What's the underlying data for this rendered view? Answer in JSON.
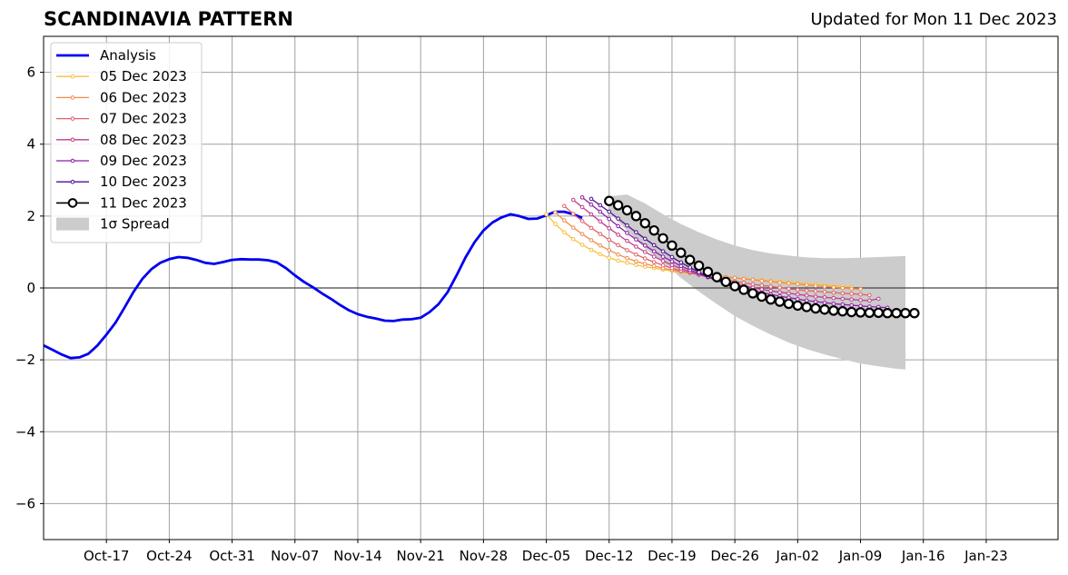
{
  "chart_data": {
    "type": "line",
    "title": "SCANDINAVIA PATTERN",
    "subtitle": "Updated for Mon 11 Dec 2023",
    "xlabel": "",
    "ylabel": "",
    "ylim": [
      -7,
      7
    ],
    "y_ticks": [
      -6,
      -4,
      -2,
      0,
      2,
      4,
      6
    ],
    "y_tick_labels": [
      "−6",
      "−4",
      "−2",
      "0",
      "2",
      "4",
      "6"
    ],
    "x_range": [
      "2023-10-10",
      "2024-01-31"
    ],
    "x_ticks": [
      {
        "date": "2023-10-17",
        "label": "Oct-17"
      },
      {
        "date": "2023-10-24",
        "label": "Oct-24"
      },
      {
        "date": "2023-10-31",
        "label": "Oct-31"
      },
      {
        "date": "2023-11-07",
        "label": "Nov-07"
      },
      {
        "date": "2023-11-14",
        "label": "Nov-14"
      },
      {
        "date": "2023-11-21",
        "label": "Nov-21"
      },
      {
        "date": "2023-11-28",
        "label": "Nov-28"
      },
      {
        "date": "2023-12-05",
        "label": "Dec-05"
      },
      {
        "date": "2023-12-12",
        "label": "Dec-12"
      },
      {
        "date": "2023-12-19",
        "label": "Dec-19"
      },
      {
        "date": "2023-12-26",
        "label": "Dec-26"
      },
      {
        "date": "2024-01-02",
        "label": "Jan-02"
      },
      {
        "date": "2024-01-09",
        "label": "Jan-09"
      },
      {
        "date": "2024-01-16",
        "label": "Jan-16"
      },
      {
        "date": "2024-01-23",
        "label": "Jan-23"
      }
    ],
    "grid": true,
    "legend_position": "top-left",
    "series": [
      {
        "name": "Analysis",
        "color": "#0000ee",
        "style": "analysis",
        "points": [
          [
            "2023-10-10",
            -1.6
          ],
          [
            "2023-10-11",
            -1.72
          ],
          [
            "2023-10-12",
            -1.85
          ],
          [
            "2023-10-13",
            -1.95
          ],
          [
            "2023-10-14",
            -1.93
          ],
          [
            "2023-10-15",
            -1.83
          ],
          [
            "2023-10-16",
            -1.6
          ],
          [
            "2023-10-17",
            -1.3
          ],
          [
            "2023-10-18",
            -0.97
          ],
          [
            "2023-10-19",
            -0.55
          ],
          [
            "2023-10-20",
            -0.12
          ],
          [
            "2023-10-21",
            0.25
          ],
          [
            "2023-10-22",
            0.52
          ],
          [
            "2023-10-23",
            0.7
          ],
          [
            "2023-10-24",
            0.8
          ],
          [
            "2023-10-25",
            0.86
          ],
          [
            "2023-10-26",
            0.84
          ],
          [
            "2023-10-27",
            0.78
          ],
          [
            "2023-10-28",
            0.7
          ],
          [
            "2023-10-29",
            0.67
          ],
          [
            "2023-10-30",
            0.72
          ],
          [
            "2023-10-31",
            0.78
          ],
          [
            "2023-11-01",
            0.8
          ],
          [
            "2023-11-02",
            0.79
          ],
          [
            "2023-11-03",
            0.79
          ],
          [
            "2023-11-04",
            0.77
          ],
          [
            "2023-11-05",
            0.71
          ],
          [
            "2023-11-06",
            0.55
          ],
          [
            "2023-11-07",
            0.35
          ],
          [
            "2023-11-08",
            0.17
          ],
          [
            "2023-11-09",
            0.02
          ],
          [
            "2023-11-10",
            -0.15
          ],
          [
            "2023-11-11",
            -0.3
          ],
          [
            "2023-11-12",
            -0.47
          ],
          [
            "2023-11-13",
            -0.62
          ],
          [
            "2023-11-14",
            -0.73
          ],
          [
            "2023-11-15",
            -0.8
          ],
          [
            "2023-11-16",
            -0.85
          ],
          [
            "2023-11-17",
            -0.91
          ],
          [
            "2023-11-18",
            -0.92
          ],
          [
            "2023-11-19",
            -0.88
          ],
          [
            "2023-11-20",
            -0.87
          ],
          [
            "2023-11-21",
            -0.83
          ],
          [
            "2023-11-22",
            -0.67
          ],
          [
            "2023-11-23",
            -0.45
          ],
          [
            "2023-11-24",
            -0.12
          ],
          [
            "2023-11-25",
            0.35
          ],
          [
            "2023-11-26",
            0.85
          ],
          [
            "2023-11-27",
            1.27
          ],
          [
            "2023-11-28",
            1.6
          ],
          [
            "2023-11-29",
            1.82
          ],
          [
            "2023-11-30",
            1.96
          ],
          [
            "2023-12-01",
            2.05
          ],
          [
            "2023-12-02",
            2.0
          ],
          [
            "2023-12-03",
            1.92
          ],
          [
            "2023-12-04",
            1.93
          ],
          [
            "2023-12-05",
            2.02
          ],
          [
            "2023-12-06",
            2.12
          ],
          [
            "2023-12-07",
            2.12
          ],
          [
            "2023-12-08",
            2.05
          ],
          [
            "2023-12-09",
            1.95
          ]
        ]
      },
      {
        "name": "05 Dec 2023",
        "color": "#f7c040",
        "style": "small",
        "start": "2023-12-05",
        "values": [
          2.05,
          1.78,
          1.55,
          1.36,
          1.2,
          1.06,
          0.94,
          0.84,
          0.76,
          0.7,
          0.64,
          0.59,
          0.55,
          0.51,
          0.47,
          0.44,
          0.41,
          0.38,
          0.35,
          0.33,
          0.31,
          0.28,
          0.26,
          0.24,
          0.22,
          0.2,
          0.18,
          0.16,
          0.14,
          0.12,
          0.1,
          0.08,
          0.06,
          0.04,
          0.02
        ]
      },
      {
        "name": "06 Dec 2023",
        "color": "#f08c4b",
        "style": "small",
        "start": "2023-12-06",
        "values": [
          2.1,
          1.88,
          1.68,
          1.5,
          1.33,
          1.18,
          1.05,
          0.93,
          0.83,
          0.74,
          0.67,
          0.61,
          0.55,
          0.5,
          0.46,
          0.42,
          0.39,
          0.36,
          0.33,
          0.3,
          0.28,
          0.25,
          0.23,
          0.2,
          0.18,
          0.15,
          0.13,
          0.11,
          0.08,
          0.06,
          0.04,
          0.02,
          0.0,
          -0.02,
          -0.03
        ]
      },
      {
        "name": "07 Dec 2023",
        "color": "#e06068",
        "style": "small",
        "start": "2023-12-07",
        "values": [
          2.28,
          2.06,
          1.86,
          1.67,
          1.5,
          1.34,
          1.19,
          1.05,
          0.93,
          0.82,
          0.72,
          0.63,
          0.55,
          0.48,
          0.42,
          0.37,
          0.32,
          0.27,
          0.22,
          0.18,
          0.14,
          0.1,
          0.07,
          0.04,
          0.01,
          -0.02,
          -0.05,
          -0.07,
          -0.09,
          -0.11,
          -0.13,
          -0.15,
          -0.16,
          -0.18,
          -0.2
        ]
      },
      {
        "name": "08 Dec 2023",
        "color": "#c03c8c",
        "style": "small",
        "start": "2023-12-08",
        "values": [
          2.45,
          2.25,
          2.05,
          1.85,
          1.66,
          1.48,
          1.31,
          1.15,
          1.0,
          0.87,
          0.75,
          0.64,
          0.54,
          0.45,
          0.37,
          0.3,
          0.23,
          0.17,
          0.11,
          0.06,
          0.01,
          -0.04,
          -0.08,
          -0.12,
          -0.15,
          -0.18,
          -0.21,
          -0.24,
          -0.26,
          -0.28,
          -0.3,
          -0.32,
          -0.34,
          -0.35,
          -0.3
        ]
      },
      {
        "name": "09 Dec 2023",
        "color": "#8c1ca8",
        "style": "small",
        "start": "2023-12-09",
        "values": [
          2.52,
          2.32,
          2.12,
          1.92,
          1.72,
          1.53,
          1.35,
          1.18,
          1.02,
          0.87,
          0.74,
          0.61,
          0.5,
          0.4,
          0.3,
          0.21,
          0.13,
          0.06,
          -0.01,
          -0.07,
          -0.13,
          -0.18,
          -0.23,
          -0.27,
          -0.31,
          -0.35,
          -0.38,
          -0.41,
          -0.44,
          -0.46,
          -0.48,
          -0.5,
          -0.52,
          -0.53,
          -0.55
        ]
      },
      {
        "name": "10 Dec 2023",
        "color": "#4c1090",
        "style": "small",
        "start": "2023-12-10",
        "values": [
          2.48,
          2.3,
          2.12,
          1.93,
          1.74,
          1.55,
          1.37,
          1.19,
          1.02,
          0.86,
          0.71,
          0.57,
          0.44,
          0.32,
          0.21,
          0.11,
          0.02,
          -0.06,
          -0.14,
          -0.21,
          -0.27,
          -0.33,
          -0.38,
          -0.43,
          -0.47,
          -0.51,
          -0.54,
          -0.57,
          -0.6,
          -0.62,
          -0.64,
          -0.66,
          -0.67,
          -0.68,
          -0.69
        ]
      },
      {
        "name": "11 Dec 2023",
        "color": "#000000",
        "style": "big",
        "start": "2023-12-12",
        "values": [
          2.42,
          2.3,
          2.16,
          2.0,
          1.8,
          1.6,
          1.38,
          1.18,
          0.98,
          0.78,
          0.62,
          0.45,
          0.3,
          0.17,
          0.05,
          -0.05,
          -0.15,
          -0.24,
          -0.32,
          -0.38,
          -0.44,
          -0.49,
          -0.53,
          -0.57,
          -0.6,
          -0.63,
          -0.65,
          -0.67,
          -0.68,
          -0.69,
          -0.69,
          -0.7,
          -0.7,
          -0.7,
          -0.7
        ]
      }
    ],
    "spread": {
      "name": "1σ Spread",
      "color": "#cccccc",
      "points": [
        [
          "2023-12-12",
          2.55,
          2.1
        ],
        [
          "2023-12-14",
          2.6,
          1.6
        ],
        [
          "2023-12-16",
          2.35,
          1.1
        ],
        [
          "2023-12-18",
          2.05,
          0.7
        ],
        [
          "2023-12-20",
          1.78,
          0.28
        ],
        [
          "2023-12-22",
          1.55,
          -0.1
        ],
        [
          "2023-12-24",
          1.35,
          -0.45
        ],
        [
          "2023-12-26",
          1.18,
          -0.78
        ],
        [
          "2023-12-28",
          1.05,
          -1.05
        ],
        [
          "2023-12-30",
          0.96,
          -1.3
        ],
        [
          "2024-01-01",
          0.9,
          -1.52
        ],
        [
          "2024-01-03",
          0.85,
          -1.7
        ],
        [
          "2024-01-05",
          0.83,
          -1.85
        ],
        [
          "2024-01-07",
          0.83,
          -1.98
        ],
        [
          "2024-01-09",
          0.84,
          -2.1
        ],
        [
          "2024-01-11",
          0.86,
          -2.18
        ],
        [
          "2024-01-13",
          0.88,
          -2.25
        ],
        [
          "2024-01-14",
          0.89,
          -2.27
        ]
      ]
    }
  }
}
